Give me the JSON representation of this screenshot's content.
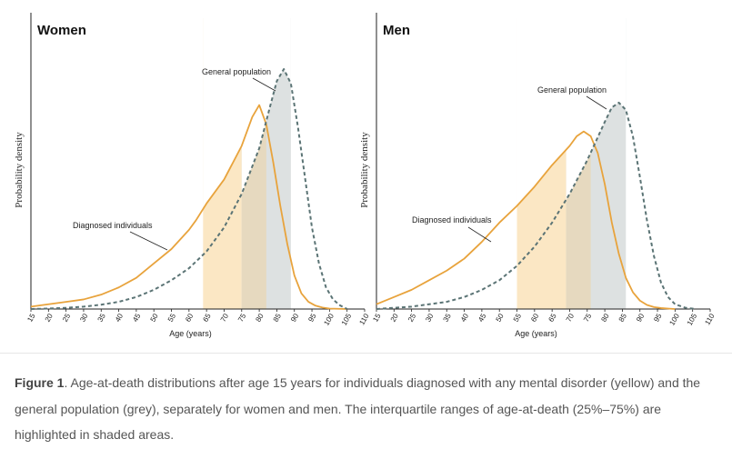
{
  "chart_data": [
    {
      "type": "line",
      "title": "Women",
      "xlabel": "Age (years)",
      "ylabel": "Probability density",
      "xlim": [
        15,
        110
      ],
      "ylim": [
        0,
        1
      ],
      "x_ticks": [
        15,
        20,
        25,
        30,
        35,
        40,
        45,
        50,
        55,
        60,
        65,
        70,
        75,
        80,
        85,
        90,
        95,
        100,
        105,
        110
      ],
      "y_ticks": [],
      "grid": false,
      "series": [
        {
          "name": "Diagnosed individuals",
          "color": "#e8a33c",
          "style": "solid",
          "x": [
            15,
            20,
            25,
            30,
            35,
            40,
            45,
            50,
            55,
            60,
            62,
            65,
            70,
            75,
            78,
            80,
            82,
            84,
            86,
            88,
            90,
            92,
            94,
            96,
            98,
            100,
            105
          ],
          "y": [
            0.01,
            0.02,
            0.03,
            0.04,
            0.06,
            0.09,
            0.13,
            0.19,
            0.25,
            0.33,
            0.37,
            0.44,
            0.54,
            0.68,
            0.8,
            0.85,
            0.77,
            0.61,
            0.43,
            0.27,
            0.14,
            0.065,
            0.03,
            0.014,
            0.006,
            0.002,
            0.0
          ],
          "iqr": [
            64,
            82
          ],
          "iqr_fill": "#fbe7c4"
        },
        {
          "name": "General population",
          "color": "#5b7475",
          "style": "dashed",
          "x": [
            15,
            20,
            25,
            30,
            35,
            40,
            45,
            50,
            55,
            60,
            65,
            70,
            75,
            80,
            83,
            85,
            87,
            89,
            91,
            93,
            95,
            97,
            99,
            101,
            103,
            105
          ],
          "y": [
            0.0,
            0.002,
            0.005,
            0.01,
            0.018,
            0.03,
            0.05,
            0.08,
            0.12,
            0.17,
            0.24,
            0.34,
            0.48,
            0.67,
            0.84,
            0.95,
            1.0,
            0.94,
            0.76,
            0.55,
            0.34,
            0.19,
            0.09,
            0.04,
            0.015,
            0.0
          ],
          "iqr": [
            75,
            89
          ],
          "iqr_fill": "#dde1e1"
        }
      ]
    },
    {
      "type": "line",
      "title": "Men",
      "xlabel": "Age (years)",
      "ylabel": "Probability density",
      "xlim": [
        15,
        110
      ],
      "ylim": [
        0,
        1
      ],
      "x_ticks": [
        15,
        20,
        25,
        30,
        35,
        40,
        45,
        50,
        55,
        60,
        65,
        70,
        75,
        80,
        85,
        90,
        95,
        100,
        105,
        110
      ],
      "y_ticks": [],
      "grid": false,
      "series": [
        {
          "name": "Diagnosed individuals",
          "color": "#e8a33c",
          "style": "solid",
          "x": [
            15,
            20,
            25,
            30,
            35,
            40,
            45,
            50,
            55,
            60,
            65,
            70,
            72,
            74,
            76,
            78,
            80,
            82,
            84,
            86,
            88,
            90,
            92,
            94,
            96,
            98,
            100
          ],
          "y": [
            0.02,
            0.05,
            0.08,
            0.12,
            0.16,
            0.21,
            0.28,
            0.36,
            0.43,
            0.51,
            0.6,
            0.68,
            0.72,
            0.74,
            0.72,
            0.65,
            0.52,
            0.36,
            0.23,
            0.13,
            0.07,
            0.035,
            0.017,
            0.008,
            0.004,
            0.002,
            0.0
          ],
          "iqr": [
            55,
            76
          ],
          "iqr_fill": "#fbe7c4"
        },
        {
          "name": "General population",
          "color": "#5b7475",
          "style": "dashed",
          "x": [
            15,
            20,
            25,
            30,
            35,
            40,
            45,
            50,
            55,
            60,
            65,
            70,
            75,
            80,
            82,
            84,
            86,
            88,
            90,
            92,
            94,
            96,
            98,
            100,
            103,
            106
          ],
          "y": [
            0.0,
            0.005,
            0.01,
            0.02,
            0.03,
            0.05,
            0.08,
            0.12,
            0.18,
            0.26,
            0.36,
            0.48,
            0.62,
            0.78,
            0.84,
            0.86,
            0.83,
            0.72,
            0.55,
            0.37,
            0.22,
            0.11,
            0.05,
            0.02,
            0.005,
            0.0
          ],
          "iqr": [
            69,
            86
          ],
          "iqr_fill": "#dde1e1"
        }
      ]
    }
  ],
  "caption": {
    "label": "Figure 1",
    "text": ". Age-at-death distributions after age 15 years for individuals diagnosed with any mental disorder (yellow) and the general population (grey), separately for women and men. The interquartile ranges of age-at-death (25%–75%) are highlighted in shaded areas."
  }
}
